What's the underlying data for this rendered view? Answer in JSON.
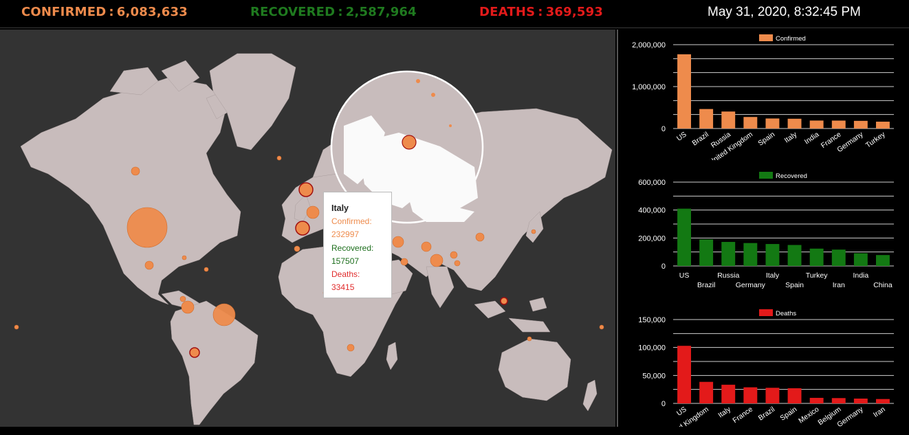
{
  "header": {
    "confirmed_label": "CONFIRMED",
    "confirmed_value": "6,083,633",
    "recovered_label": "RECOVERED",
    "recovered_value": "2,587,964",
    "deaths_label": "DEATHS",
    "deaths_value": "369,593",
    "separator": ":",
    "datetime": "May 31, 2020, 8:32:45 PM"
  },
  "colors": {
    "confirmed": "#ee8b4c",
    "recovered": "#137913",
    "deaths": "#e31a1a",
    "land": "#c8bcbc",
    "ocean": "#333333"
  },
  "tooltip": {
    "country": "Italy",
    "confirmed_label": "Confirmed:",
    "confirmed_value": "232997",
    "recovered_label": "Recovered:",
    "recovered_value": "157507",
    "deaths_label": "Deaths:",
    "deaths_value": "33415"
  },
  "chart_data": [
    {
      "type": "bar",
      "legend": "Confirmed",
      "color": "#ee8b4c",
      "categories": [
        "US",
        "Brazil",
        "Russia",
        "United Kingdom",
        "Spain",
        "Italy",
        "India",
        "France",
        "Germany",
        "Turkey"
      ],
      "values": [
        1770000,
        465000,
        405000,
        275000,
        239000,
        233000,
        190000,
        189000,
        183000,
        163000
      ],
      "ylim": [
        0,
        2000000
      ],
      "yticks": [
        0,
        1000000,
        2000000
      ],
      "ytick_labels": [
        "0",
        "1,000,000",
        "2,000,000"
      ],
      "label_style": "rotated"
    },
    {
      "type": "bar",
      "legend": "Recovered",
      "color": "#137913",
      "categories": [
        "US",
        "Brazil",
        "Russia",
        "Germany",
        "Italy",
        "Spain",
        "Turkey",
        "Iran",
        "India",
        "China"
      ],
      "values": [
        410000,
        190000,
        172000,
        164000,
        157000,
        150000,
        124000,
        117000,
        91000,
        78000
      ],
      "ylim": [
        0,
        600000
      ],
      "yticks": [
        0,
        200000,
        400000,
        600000
      ],
      "ytick_labels": [
        "0",
        "200,000",
        "400,000",
        "600,000"
      ],
      "label_style": "staggered"
    },
    {
      "type": "bar",
      "legend": "Deaths",
      "color": "#e31a1a",
      "categories": [
        "US",
        "United Kingdom",
        "Italy",
        "France",
        "Brazil",
        "Spain",
        "Mexico",
        "Belgium",
        "Germany",
        "Iran"
      ],
      "values": [
        103000,
        38500,
        33400,
        28800,
        27900,
        27100,
        9900,
        9500,
        8600,
        7800
      ],
      "ylim": [
        0,
        150000
      ],
      "yticks": [
        0,
        50000,
        100000,
        150000
      ],
      "ytick_labels": [
        "0",
        "50,000",
        "100,000",
        "150,000"
      ],
      "label_style": "rotated"
    }
  ]
}
